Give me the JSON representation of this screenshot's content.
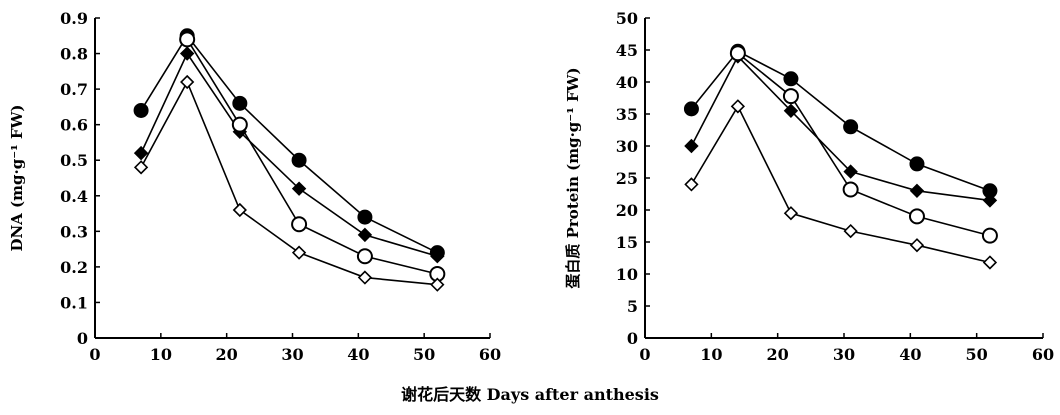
{
  "xlabel": "谢花后天数 Days after anthesis",
  "chart_data": [
    {
      "type": "line",
      "ylabel": "DNA (mg·g⁻¹ FW)",
      "xlim": [
        0,
        60
      ],
      "ylim": [
        0,
        0.9
      ],
      "xticks": [
        0,
        10,
        20,
        30,
        40,
        50,
        60
      ],
      "yticks": [
        0,
        0.1,
        0.2,
        0.3,
        0.4,
        0.5,
        0.6,
        0.7,
        0.8,
        0.9
      ],
      "ytick_labels": [
        "0",
        "0.1",
        "0.2",
        "0.3",
        "0.4",
        "0.5",
        "0.6",
        "0.7",
        "0.8",
        "0.9"
      ],
      "x": [
        7,
        14,
        22,
        31,
        41,
        52
      ],
      "series": [
        {
          "marker": "filled-circle",
          "values": [
            0.64,
            0.85,
            0.66,
            0.5,
            0.34,
            0.24
          ]
        },
        {
          "marker": "filled-diamond",
          "values": [
            0.52,
            0.8,
            0.58,
            0.42,
            0.29,
            0.23
          ]
        },
        {
          "marker": "open-circle",
          "values": [
            null,
            0.84,
            0.6,
            0.32,
            0.23,
            0.18
          ]
        },
        {
          "marker": "open-diamond",
          "values": [
            0.48,
            0.72,
            0.36,
            0.24,
            0.17,
            0.15
          ]
        }
      ]
    },
    {
      "type": "line",
      "ylabel": "蛋白质 Protein (mg·g⁻¹ FW)",
      "xlim": [
        0,
        60
      ],
      "ylim": [
        0,
        50
      ],
      "xticks": [
        0,
        10,
        20,
        30,
        40,
        50,
        60
      ],
      "yticks": [
        0,
        5,
        10,
        15,
        20,
        25,
        30,
        35,
        40,
        45,
        50
      ],
      "ytick_labels": [
        "0",
        "5",
        "10",
        "15",
        "20",
        "25",
        "30",
        "35",
        "40",
        "45",
        "50"
      ],
      "x": [
        7,
        14,
        22,
        31,
        41,
        52
      ],
      "series": [
        {
          "marker": "filled-circle",
          "values": [
            35.8,
            44.8,
            40.5,
            33.0,
            27.2,
            23.0
          ]
        },
        {
          "marker": "filled-diamond",
          "values": [
            30.0,
            44.0,
            35.5,
            26.0,
            23.0,
            21.5
          ]
        },
        {
          "marker": "open-circle",
          "values": [
            null,
            44.5,
            37.8,
            23.2,
            19.0,
            16.0
          ]
        },
        {
          "marker": "open-diamond",
          "values": [
            24.0,
            36.2,
            19.5,
            16.7,
            14.5,
            11.8
          ]
        }
      ]
    }
  ]
}
